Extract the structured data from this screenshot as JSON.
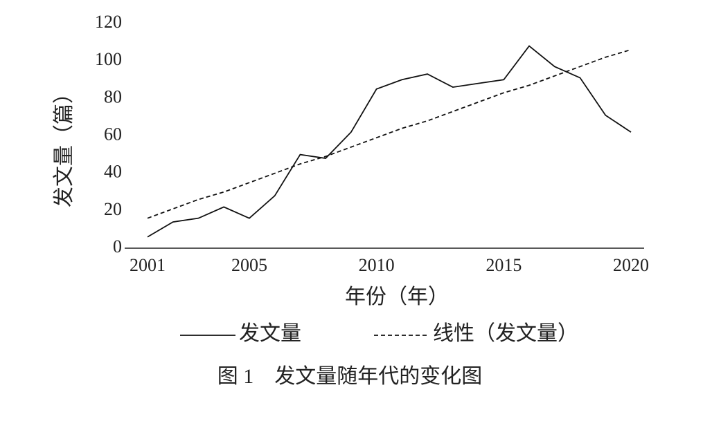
{
  "chart_data": {
    "type": "line",
    "caption": "图 1　发文量随年代的变化图",
    "xlabel": "年份（年）",
    "ylabel": "发文量（篇）",
    "x": [
      2001,
      2002,
      2003,
      2004,
      2005,
      2006,
      2007,
      2008,
      2009,
      2010,
      2011,
      2012,
      2013,
      2014,
      2015,
      2016,
      2017,
      2018,
      2019,
      2020
    ],
    "series": [
      {
        "name": "发文量",
        "color": "#111111",
        "dash": false,
        "values": [
          6,
          14,
          16,
          22,
          16,
          28,
          50,
          48,
          62,
          85,
          90,
          93,
          86,
          88,
          90,
          108,
          97,
          91,
          71,
          62
        ]
      },
      {
        "name": "线性（发文量）",
        "color": "#111111",
        "dash": true,
        "values": [
          16,
          21,
          26,
          30,
          35,
          40,
          45,
          49,
          54,
          59,
          64,
          68,
          73,
          78,
          83,
          87,
          92,
          97,
          102,
          106
        ]
      }
    ],
    "xlim": [
      2001,
      2020
    ],
    "xticks": [
      2001,
      2005,
      2010,
      2015,
      2020
    ],
    "ylim": [
      0,
      120
    ],
    "yticks": [
      0,
      20,
      40,
      60,
      80,
      100,
      120
    ],
    "grid": false
  }
}
